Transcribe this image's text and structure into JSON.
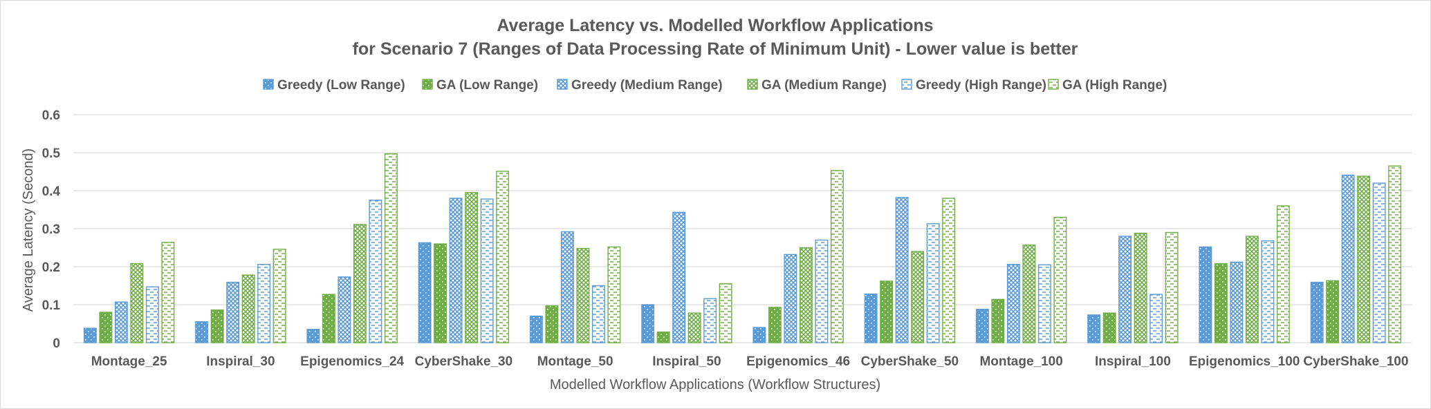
{
  "chart_data": {
    "type": "bar",
    "title": "Average Latency vs. Modelled Workflow Applications",
    "subtitle": "for Scenario 7 (Ranges of Data Processing Rate of Minimum Unit) - Lower value is better",
    "xlabel": "Modelled Workflow Applications (Workflow Structures)",
    "ylabel": "Average Latency (Second)",
    "ylim": [
      0,
      0.6
    ],
    "yticks": [
      "0",
      "0.1",
      "0.2",
      "0.3",
      "0.4",
      "0.5",
      "0.6"
    ],
    "grid": true,
    "legend_position": "top",
    "categories": [
      "Montage_25",
      "Inspiral_30",
      "Epigenomics_24",
      "CyberShake_30",
      "Montage_50",
      "Inspiral_50",
      "Epigenomics_46",
      "CyberShake_50",
      "Montage_100",
      "Inspiral_100",
      "Epigenomics_100",
      "CyberShake_100"
    ],
    "series": [
      {
        "name": "Greedy (Low Range)",
        "color": "#5b9bd5",
        "pattern": "dots",
        "values": [
          0.038,
          0.055,
          0.035,
          0.263,
          0.07,
          0.1,
          0.04,
          0.128,
          0.088,
          0.073,
          0.252,
          0.159
        ]
      },
      {
        "name": "GA (Low Range)",
        "color": "#70ad47",
        "pattern": "dots",
        "values": [
          0.08,
          0.086,
          0.127,
          0.26,
          0.097,
          0.028,
          0.093,
          0.162,
          0.114,
          0.078,
          0.208,
          0.163
        ]
      },
      {
        "name": "Greedy (Medium Range)",
        "color": "#5b9bd5",
        "pattern": "checker",
        "values": [
          0.107,
          0.159,
          0.173,
          0.38,
          0.292,
          0.343,
          0.232,
          0.382,
          0.206,
          0.28,
          0.212,
          0.441
        ]
      },
      {
        "name": "GA (Medium Range)",
        "color": "#70ad47",
        "pattern": "checker",
        "values": [
          0.208,
          0.178,
          0.311,
          0.395,
          0.248,
          0.078,
          0.25,
          0.24,
          0.257,
          0.288,
          0.28,
          0.438
        ]
      },
      {
        "name": "Greedy (High Range)",
        "color": "#5b9bd5",
        "pattern": "dashes",
        "values": [
          0.147,
          0.206,
          0.375,
          0.378,
          0.15,
          0.116,
          0.27,
          0.313,
          0.205,
          0.127,
          0.268,
          0.42
        ]
      },
      {
        "name": "GA (High Range)",
        "color": "#70ad47",
        "pattern": "dashes",
        "values": [
          0.264,
          0.246,
          0.497,
          0.451,
          0.252,
          0.155,
          0.453,
          0.38,
          0.33,
          0.29,
          0.36,
          0.465
        ]
      }
    ]
  }
}
